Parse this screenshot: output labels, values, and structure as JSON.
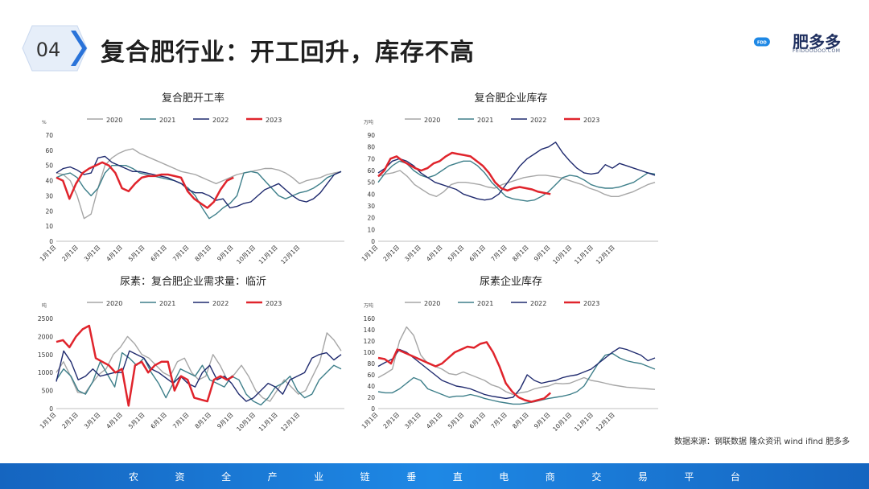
{
  "header": {
    "section_number": "04",
    "title": "复合肥行业：开工回升，库存不高"
  },
  "logo": {
    "text": "肥多多",
    "badge": "FDD",
    "sub": "FEIDOODOO.COM"
  },
  "source": "数据来源：钢联数据  隆众资讯 wind  ifind  肥多多",
  "footer": {
    "chars": [
      "农",
      "资",
      "全",
      "产",
      "业",
      "链",
      "垂",
      "直",
      "电",
      "商",
      "交",
      "易",
      "平",
      "台"
    ]
  },
  "colors": {
    "2020": "#a6a6a6",
    "2021": "#3e7f8a",
    "2022": "#1f2a6e",
    "2023": "#e0242c",
    "footer": "#1e88e5",
    "badge": "#2a73d9"
  },
  "chart_data": [
    {
      "type": "line",
      "title": "复合肥开工率",
      "unit": "%",
      "ylim": [
        0,
        70
      ],
      "yticks": [
        0,
        10,
        20,
        30,
        40,
        50,
        60,
        70
      ],
      "xticks": [
        "1月1日",
        "2月1日",
        "3月1日",
        "4月1日",
        "5月1日",
        "6月1日",
        "7月1日",
        "8月1日",
        "9月1日",
        "10月1日",
        "11月1日",
        "12月1日"
      ],
      "legend": [
        "2020",
        "2021",
        "2022",
        "2023"
      ],
      "series": [
        {
          "name": "2020",
          "values": [
            45,
            44,
            40,
            30,
            15,
            18,
            35,
            50,
            55,
            58,
            60,
            61,
            58,
            56,
            54,
            52,
            50,
            48,
            46,
            45,
            44,
            42,
            40,
            38,
            40,
            42,
            44,
            45,
            46,
            47,
            48,
            48,
            47,
            45,
            42,
            38,
            40,
            41,
            42,
            44,
            45,
            46
          ]
        },
        {
          "name": "2021",
          "values": [
            42,
            44,
            45,
            42,
            35,
            30,
            35,
            45,
            50,
            50,
            50,
            48,
            45,
            44,
            43,
            42,
            41,
            40,
            38,
            35,
            30,
            22,
            15,
            18,
            22,
            25,
            30,
            45,
            46,
            45,
            40,
            35,
            30,
            28,
            30,
            32,
            33,
            35,
            38,
            42,
            44,
            46
          ]
        },
        {
          "name": "2022",
          "values": [
            45,
            48,
            49,
            47,
            44,
            45,
            55,
            56,
            52,
            50,
            48,
            46,
            46,
            45,
            44,
            43,
            42,
            40,
            38,
            34,
            32,
            32,
            30,
            27,
            28,
            22,
            23,
            25,
            26,
            30,
            34,
            36,
            38,
            34,
            30,
            27,
            26,
            28,
            32,
            38,
            44,
            46
          ]
        },
        {
          "name": "2023",
          "values": [
            42,
            40,
            28,
            38,
            45,
            48,
            50,
            52,
            50,
            45,
            35,
            33,
            38,
            42,
            43,
            43,
            44,
            44,
            43,
            42,
            33,
            28,
            25,
            22,
            26,
            34,
            40,
            42
          ]
        }
      ]
    },
    {
      "type": "line",
      "title": "复合肥企业库存",
      "unit": "万吨",
      "ylim": [
        0,
        90
      ],
      "yticks": [
        0,
        10,
        20,
        30,
        40,
        50,
        60,
        70,
        80,
        90
      ],
      "xticks": [
        "1月1日",
        "2月1日",
        "3月1日",
        "4月1日",
        "5月1日",
        "6月1日",
        "7月1日",
        "8月1日",
        "9月1日",
        "10月1日",
        "11月1日",
        "12月1日"
      ],
      "legend": [
        "2020",
        "2021",
        "2022",
        "2023"
      ],
      "series": [
        {
          "name": "2020",
          "values": [
            55,
            57,
            58,
            60,
            55,
            48,
            44,
            40,
            38,
            42,
            48,
            50,
            50,
            49,
            48,
            46,
            45,
            48,
            50,
            52,
            54,
            55,
            56,
            56,
            55,
            54,
            52,
            50,
            48,
            45,
            43,
            40,
            38,
            38,
            40,
            42,
            45,
            48,
            50
          ]
        },
        {
          "name": "2021",
          "values": [
            50,
            58,
            64,
            68,
            66,
            60,
            56,
            54,
            56,
            60,
            64,
            66,
            68,
            68,
            64,
            58,
            50,
            44,
            38,
            36,
            35,
            34,
            35,
            38,
            42,
            48,
            54,
            56,
            55,
            52,
            48,
            46,
            45,
            45,
            46,
            48,
            50,
            54,
            58,
            57
          ]
        },
        {
          "name": "2022",
          "values": [
            58,
            62,
            68,
            70,
            68,
            64,
            58,
            54,
            50,
            48,
            46,
            44,
            40,
            38,
            36,
            35,
            36,
            40,
            48,
            56,
            64,
            70,
            74,
            78,
            80,
            84,
            75,
            68,
            62,
            58,
            57,
            58,
            65,
            62,
            66,
            64,
            62,
            60,
            58,
            56
          ]
        },
        {
          "name": "2023",
          "values": [
            55,
            60,
            70,
            72,
            68,
            65,
            62,
            60,
            62,
            66,
            68,
            72,
            75,
            74,
            73,
            72,
            68,
            64,
            58,
            50,
            45,
            43,
            45,
            46,
            45,
            44,
            42,
            41,
            40
          ]
        }
      ]
    },
    {
      "type": "line",
      "title": "尿素：复合肥企业需求量：临沂",
      "unit": "吨",
      "ylim": [
        0,
        2500
      ],
      "yticks": [
        0,
        500,
        1000,
        1500,
        2000,
        2500
      ],
      "xticks": [
        "1月1日",
        "2月1日",
        "3月1日",
        "4月1日",
        "5月1日",
        "6月1日",
        "7月1日",
        "8月1日",
        "9月1日",
        "10月1日",
        "11月1日",
        "12月1日"
      ],
      "legend": [
        "2020",
        "2021",
        "2022",
        "2023"
      ],
      "series": [
        {
          "name": "2020",
          "values": [
            1000,
            1300,
            900,
            450,
            420,
            700,
            950,
            1100,
            1500,
            1700,
            2000,
            1800,
            1500,
            1400,
            1200,
            1000,
            900,
            1300,
            1400,
            1000,
            800,
            900,
            1500,
            1200,
            800,
            950,
            1200,
            900,
            500,
            300,
            200,
            500,
            800,
            600,
            400,
            500,
            900,
            1300,
            2100,
            1900,
            1600
          ]
        },
        {
          "name": "2021",
          "values": [
            800,
            1100,
            900,
            500,
            400,
            750,
            1300,
            950,
            600,
            1550,
            1400,
            1200,
            1400,
            1000,
            700,
            300,
            700,
            1100,
            1000,
            900,
            1200,
            800,
            700,
            600,
            900,
            800,
            400,
            200,
            100,
            300,
            600,
            700,
            900,
            500,
            300,
            400,
            800,
            1000,
            1200,
            1100
          ]
        },
        {
          "name": "2022",
          "values": [
            750,
            1600,
            1300,
            800,
            900,
            1100,
            900,
            950,
            1000,
            1000,
            1600,
            1500,
            1400,
            1100,
            1000,
            850,
            700,
            900,
            700,
            600,
            1000,
            1200,
            800,
            900,
            700,
            400,
            200,
            300,
            500,
            700,
            600,
            400,
            800,
            900,
            1000,
            1400,
            1500,
            1550,
            1350,
            1500
          ]
        },
        {
          "name": "2023",
          "values": [
            1850,
            1900,
            1700,
            2000,
            2200,
            2300,
            1400,
            1300,
            1200,
            1000,
            1100,
            80,
            1200,
            1300,
            1000,
            1200,
            1300,
            1300,
            500,
            900,
            800,
            300,
            250,
            200,
            800,
            900,
            800,
            900
          ]
        }
      ]
    },
    {
      "type": "line",
      "title": "尿素企业库存",
      "unit": "万吨",
      "ylim": [
        0,
        160
      ],
      "yticks": [
        0,
        20,
        40,
        60,
        80,
        100,
        120,
        140,
        160
      ],
      "xticks": [
        "1月1日",
        "2月1日",
        "3月1日",
        "4月1日",
        "5月1日",
        "6月1日",
        "7月1日",
        "8月1日",
        "9月1日",
        "10月1日",
        "11月1日",
        "12月1日"
      ],
      "legend": [
        "2020",
        "2021",
        "2022",
        "2023"
      ],
      "series": [
        {
          "name": "2020",
          "values": [
            55,
            62,
            70,
            120,
            145,
            130,
            95,
            80,
            75,
            70,
            62,
            60,
            65,
            60,
            55,
            50,
            42,
            38,
            30,
            25,
            28,
            30,
            35,
            38,
            40,
            45,
            44,
            45,
            50,
            55,
            50,
            48,
            45,
            42,
            40,
            38,
            37,
            36,
            35,
            34
          ]
        },
        {
          "name": "2021",
          "values": [
            30,
            28,
            28,
            35,
            45,
            55,
            50,
            35,
            30,
            25,
            20,
            22,
            22,
            25,
            22,
            18,
            15,
            12,
            10,
            8,
            8,
            10,
            12,
            15,
            18,
            20,
            22,
            25,
            30,
            40,
            60,
            80,
            95,
            98,
            90,
            85,
            82,
            80,
            75,
            70
          ]
        },
        {
          "name": "2022",
          "values": [
            75,
            82,
            88,
            105,
            100,
            90,
            80,
            70,
            60,
            50,
            45,
            40,
            38,
            35,
            30,
            25,
            22,
            20,
            18,
            20,
            35,
            60,
            50,
            45,
            48,
            50,
            55,
            58,
            60,
            65,
            70,
            80,
            90,
            100,
            108,
            105,
            100,
            95,
            85,
            90
          ]
        },
        {
          "name": "2023",
          "values": [
            90,
            88,
            80,
            105,
            100,
            95,
            90,
            85,
            80,
            75,
            80,
            90,
            100,
            105,
            110,
            108,
            115,
            118,
            100,
            75,
            45,
            30,
            20,
            15,
            12,
            15,
            18,
            28
          ]
        }
      ]
    }
  ]
}
